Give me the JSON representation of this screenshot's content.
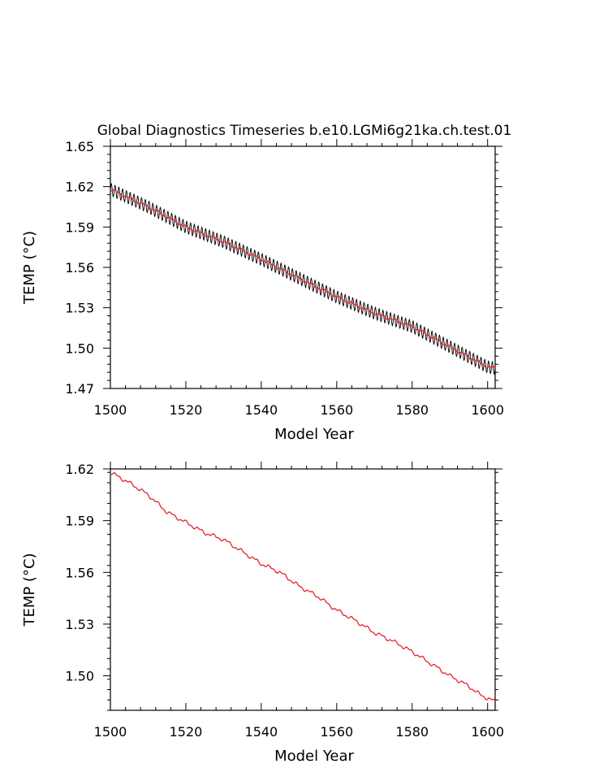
{
  "title": "Global Diagnostics Timeseries b.e10.LGMi6g21ka.ch.test.01",
  "colors": {
    "monthly": "#000000",
    "annual": "#e8202a",
    "axes": "#000000"
  },
  "chart_data": [
    {
      "type": "line",
      "title": "Global Diagnostics Timeseries b.e10.LGMi6g21ka.ch.test.01",
      "xlabel": "Model Year",
      "ylabel": "TEMP (°C)",
      "xlim": [
        1500,
        1602
      ],
      "ylim": [
        1.47,
        1.65
      ],
      "xticks": [
        1500,
        1520,
        1540,
        1560,
        1580,
        1600
      ],
      "xtick_labels": [
        "1500",
        "1520",
        "1540",
        "1560",
        "1580",
        "1600"
      ],
      "yticks": [
        1.47,
        1.5,
        1.53,
        1.56,
        1.59,
        1.62,
        1.65
      ],
      "ytick_labels": [
        "1.47",
        "1.50",
        "1.53",
        "1.56",
        "1.59",
        "1.62",
        "1.65"
      ],
      "grid": false,
      "series": [
        {
          "style": "black oscillating monthly series (seasonal cycle, amplitude ~0.0045 °C about the annual mean)",
          "oscillation_amplitude": 0.0045,
          "x": [
            1500,
            1510,
            1520,
            1530,
            1540,
            1550,
            1560,
            1570,
            1580,
            1590,
            1600,
            1602
          ],
          "values": [
            1.618,
            1.605,
            1.59,
            1.579,
            1.566,
            1.552,
            1.538,
            1.526,
            1.516,
            1.501,
            1.486,
            1.485
          ]
        },
        {
          "style": "red annual mean",
          "x": [
            1500,
            1510,
            1520,
            1530,
            1540,
            1550,
            1560,
            1570,
            1580,
            1590,
            1600,
            1602
          ],
          "values": [
            1.618,
            1.605,
            1.59,
            1.579,
            1.566,
            1.552,
            1.538,
            1.526,
            1.516,
            1.501,
            1.486,
            1.485
          ]
        }
      ]
    },
    {
      "type": "line",
      "xlabel": "Model Year",
      "ylabel": "TEMP (°C)",
      "xlim": [
        1500,
        1602
      ],
      "ylim": [
        1.48,
        1.62
      ],
      "xticks": [
        1500,
        1520,
        1540,
        1560,
        1580,
        1600
      ],
      "xtick_labels": [
        "1500",
        "1520",
        "1540",
        "1560",
        "1580",
        "1600"
      ],
      "yticks": [
        1.5,
        1.53,
        1.56,
        1.59,
        1.62
      ],
      "ytick_labels": [
        "1.50",
        "1.53",
        "1.56",
        "1.59",
        "1.62"
      ],
      "grid": false,
      "series": [
        {
          "style": "red annual mean",
          "x": [
            1500,
            1505,
            1510,
            1515,
            1520,
            1525,
            1530,
            1535,
            1540,
            1545,
            1550,
            1555,
            1560,
            1565,
            1570,
            1575,
            1580,
            1585,
            1590,
            1595,
            1598,
            1600,
            1602
          ],
          "values": [
            1.618,
            1.612,
            1.605,
            1.595,
            1.589,
            1.583,
            1.579,
            1.572,
            1.565,
            1.56,
            1.552,
            1.546,
            1.538,
            1.532,
            1.525,
            1.52,
            1.514,
            1.507,
            1.5,
            1.494,
            1.489,
            1.487,
            1.485
          ]
        }
      ]
    }
  ]
}
